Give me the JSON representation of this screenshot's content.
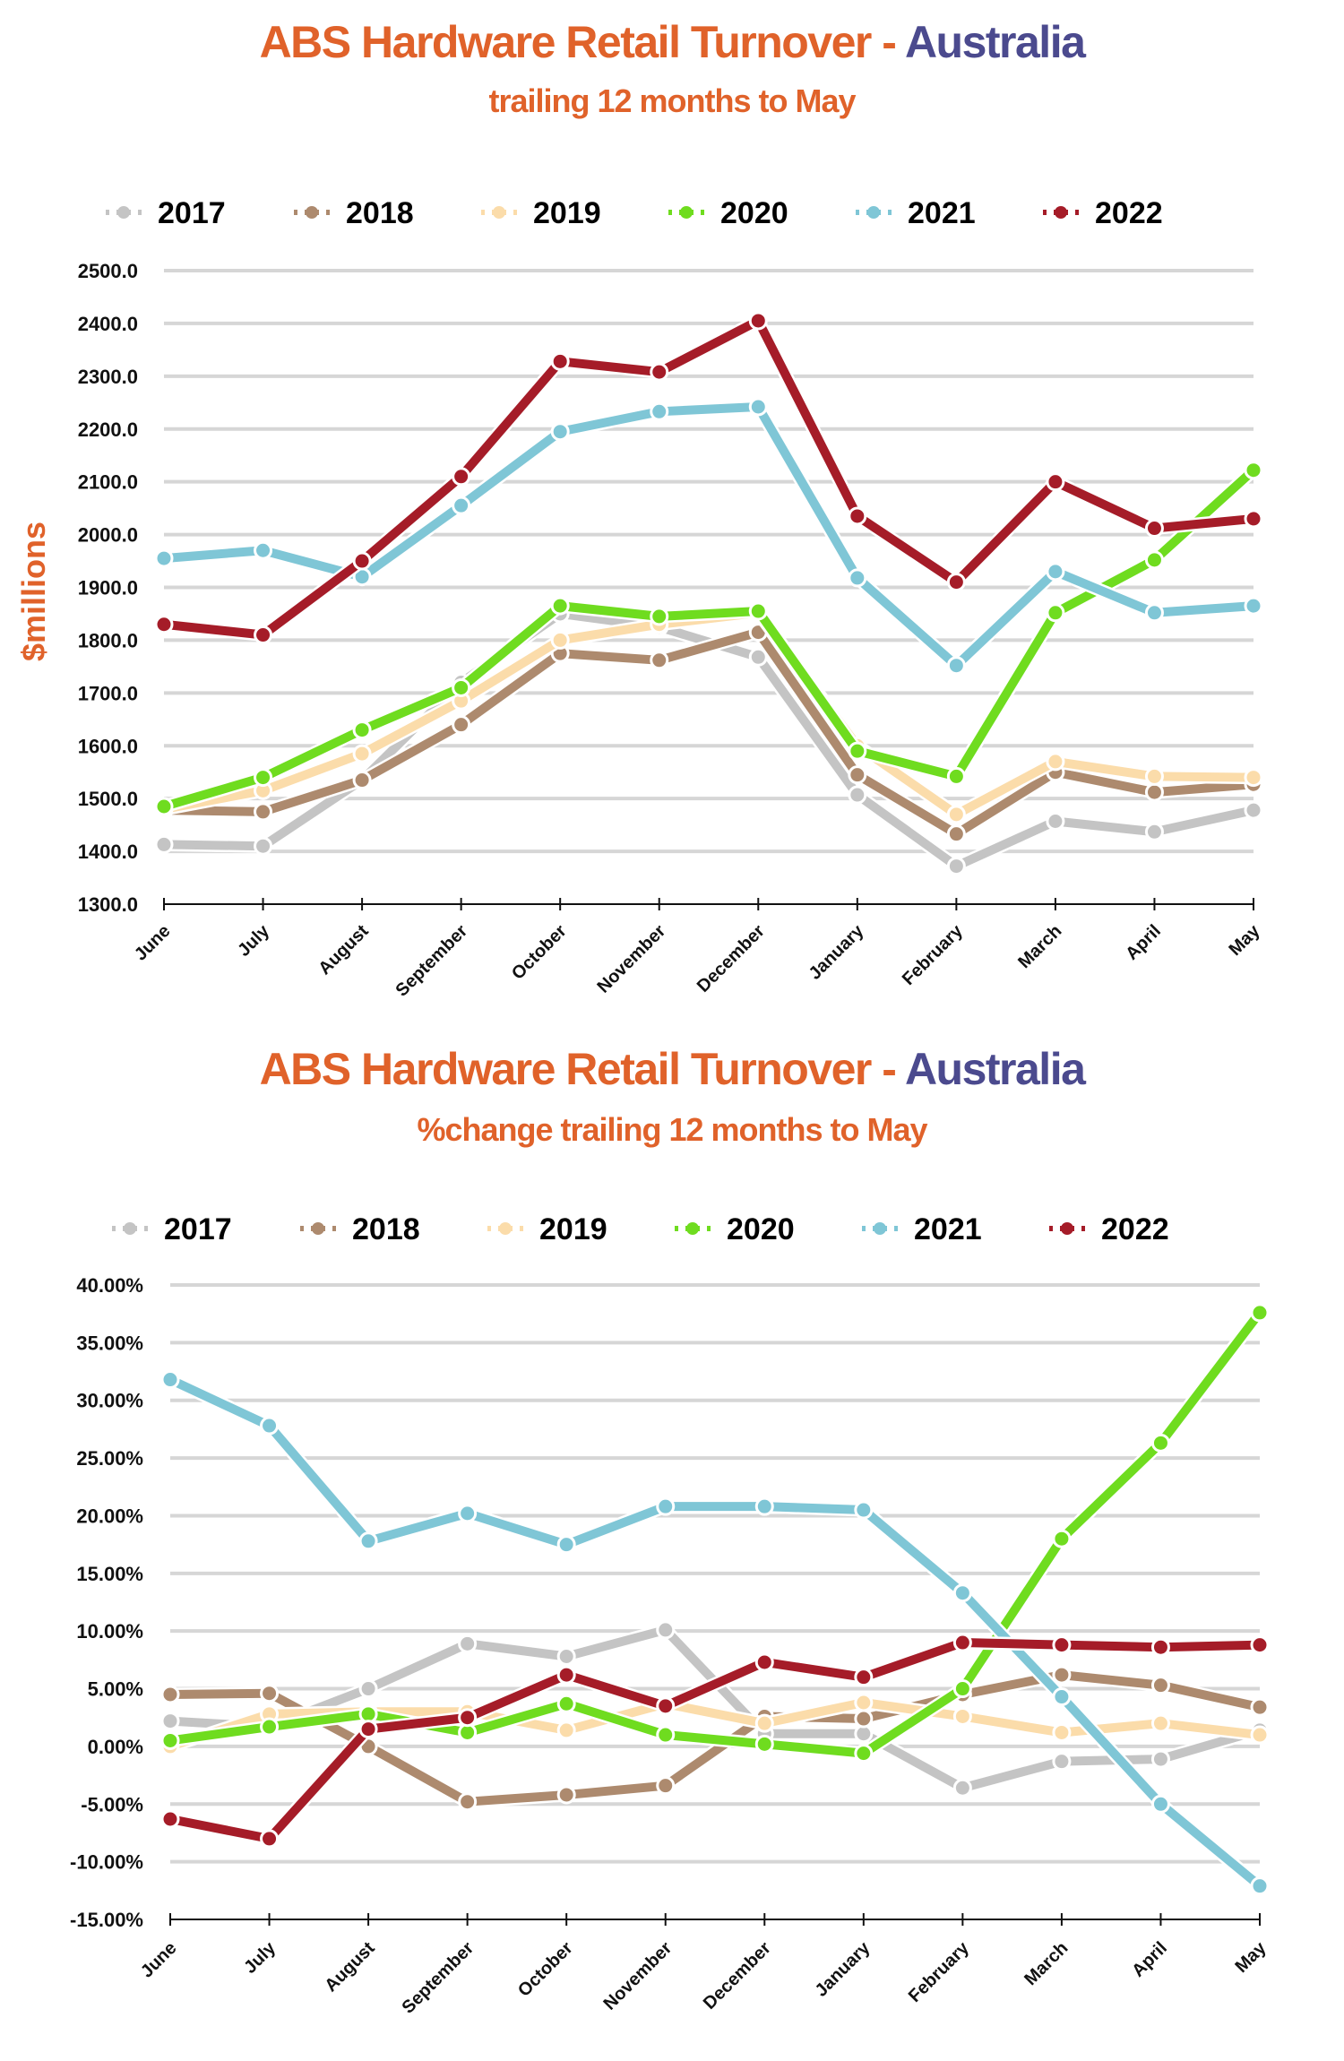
{
  "chart_data": [
    {
      "type": "line",
      "title": "ABS Hardware Retail Turnover",
      "title_accent": "Australia",
      "title_separator": " - ",
      "subtitle": "trailing 12 months to May",
      "ylabel": "$millions",
      "xlabel": "",
      "ylim": [
        1300,
        2500
      ],
      "ytick_step": 100,
      "ytick_format": "fixed1",
      "grid": true,
      "legend_position": "top",
      "categories": [
        "June",
        "July",
        "August",
        "September",
        "October",
        "November",
        "December",
        "January",
        "February",
        "March",
        "April",
        "May"
      ],
      "series": [
        {
          "name": "2017",
          "color": "#c4c4c4",
          "values": [
            1413,
            1410,
            1535,
            1720,
            1850,
            1825,
            1768,
            1507,
            1372,
            1457,
            1437,
            1478
          ]
        },
        {
          "name": "2018",
          "color": "#ad8a6e",
          "values": [
            1478,
            1475,
            1535,
            1640,
            1775,
            1762,
            1815,
            1545,
            1433,
            1550,
            1512,
            1527
          ]
        },
        {
          "name": "2019",
          "color": "#fbdcaa",
          "values": [
            1480,
            1515,
            1585,
            1685,
            1800,
            1830,
            1852,
            1600,
            1470,
            1570,
            1542,
            1540
          ]
        },
        {
          "name": "2020",
          "color": "#6fdc1f",
          "values": [
            1485,
            1540,
            1630,
            1710,
            1865,
            1845,
            1855,
            1590,
            1542,
            1852,
            1952,
            2122
          ]
        },
        {
          "name": "2021",
          "color": "#7fc6d6",
          "values": [
            1955,
            1970,
            1920,
            2055,
            2195,
            2233,
            2242,
            1918,
            1752,
            1930,
            1852,
            1865
          ]
        },
        {
          "name": "2022",
          "color": "#a51c28",
          "values": [
            1830,
            1810,
            1950,
            2110,
            2328,
            2308,
            2405,
            2035,
            1910,
            2100,
            2012,
            2030
          ]
        }
      ]
    },
    {
      "type": "line",
      "title": "ABS Hardware Retail Turnover",
      "title_accent": "Australia",
      "title_separator": " - ",
      "subtitle": "%change trailing 12 months to May",
      "ylabel": "",
      "xlabel": "",
      "ylim": [
        -15,
        40
      ],
      "ytick_step": 5,
      "ytick_format": "percent2",
      "grid": true,
      "legend_position": "top",
      "categories": [
        "June",
        "July",
        "August",
        "September",
        "October",
        "November",
        "December",
        "January",
        "February",
        "March",
        "April",
        "May"
      ],
      "series": [
        {
          "name": "2017",
          "color": "#c4c4c4",
          "values": [
            2.2,
            1.7,
            5.0,
            8.9,
            7.8,
            10.1,
            1.1,
            1.1,
            -3.6,
            -1.3,
            -1.1,
            1.4
          ]
        },
        {
          "name": "2018",
          "color": "#ad8a6e",
          "values": [
            4.5,
            4.6,
            0.0,
            -4.8,
            -4.2,
            -3.4,
            2.6,
            2.4,
            4.5,
            6.2,
            5.3,
            3.4
          ]
        },
        {
          "name": "2019",
          "color": "#fbdcaa",
          "values": [
            0.0,
            2.8,
            3.0,
            3.0,
            1.4,
            3.7,
            2.0,
            3.8,
            2.6,
            1.2,
            2.0,
            1.0
          ]
        },
        {
          "name": "2020",
          "color": "#6fdc1f",
          "values": [
            0.5,
            1.7,
            2.8,
            1.2,
            3.7,
            1.0,
            0.2,
            -0.6,
            5.0,
            18.0,
            26.3,
            37.6
          ]
        },
        {
          "name": "2021",
          "color": "#7fc6d6",
          "values": [
            31.8,
            27.8,
            17.8,
            20.2,
            17.5,
            20.8,
            20.8,
            20.5,
            13.3,
            4.3,
            -5.0,
            -12.1
          ]
        },
        {
          "name": "2022",
          "color": "#a51c28",
          "values": [
            -6.3,
            -8.0,
            1.5,
            2.5,
            6.2,
            3.5,
            7.3,
            6.0,
            9.0,
            8.8,
            8.6,
            8.8
          ]
        }
      ]
    }
  ]
}
